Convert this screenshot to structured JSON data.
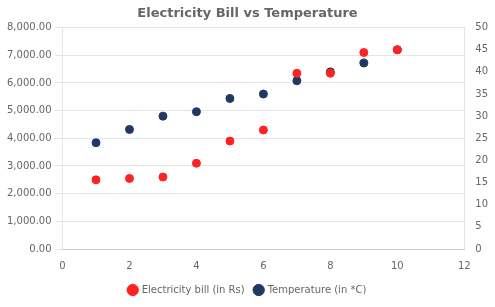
{
  "chart_data": {
    "type": "scatter",
    "title": "Electricity Bill vs Temperature",
    "x": [
      1,
      2,
      3,
      4,
      5,
      6,
      7,
      8,
      9,
      10
    ],
    "series": [
      {
        "name": "Electricity bill (in Rs)",
        "color": "#FF2222",
        "values": [
          2500,
          2550,
          2600,
          3100,
          3900,
          4300,
          6350,
          6350,
          7100,
          7200
        ]
      },
      {
        "name": "Temperature (in *C)",
        "color": "#1F3864",
        "axis": "y2",
        "values": [
          24,
          27,
          30,
          31,
          34,
          35,
          38,
          40,
          42,
          45
        ]
      }
    ],
    "xlim": [
      0,
      12
    ],
    "xticks": [
      0,
      2,
      4,
      6,
      8,
      10,
      12
    ],
    "ylim": [
      0,
      8000
    ],
    "yticks": [
      {
        "value": 0,
        "label": "0.00"
      },
      {
        "value": 1000,
        "label": "1,000.00"
      },
      {
        "value": 2000,
        "label": "2,000.00"
      },
      {
        "value": 3000,
        "label": "3,000.00"
      },
      {
        "value": 4000,
        "label": "4,000.00"
      },
      {
        "value": 5000,
        "label": "5,000.00"
      },
      {
        "value": 6000,
        "label": "6,000.00"
      },
      {
        "value": 7000,
        "label": "7,000.00"
      },
      {
        "value": 8000,
        "label": "8,000.00"
      }
    ],
    "y2lim": [
      0,
      50
    ],
    "y2ticks": [
      0,
      5,
      10,
      15,
      20,
      25,
      30,
      35,
      40,
      45,
      50
    ],
    "grid": "y",
    "legend": "bottom",
    "marker": "circle"
  }
}
